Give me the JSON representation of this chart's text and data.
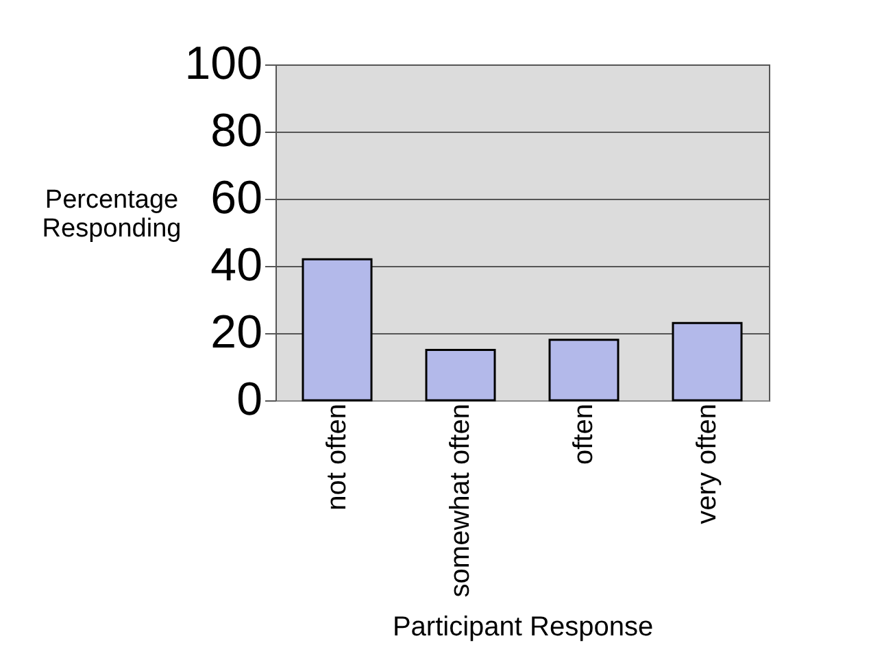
{
  "chart_data": {
    "type": "bar",
    "xlabel": "Participant Response",
    "ylabel": "Percentage Responding",
    "categories": [
      "not often",
      "somewhat often",
      "often",
      "very often"
    ],
    "values": [
      42,
      15,
      18,
      23
    ],
    "color": "#b3b9ea",
    "ylim": [
      0,
      100
    ],
    "yticks": [
      0,
      20,
      40,
      60,
      80,
      100
    ],
    "grid": "y"
  }
}
